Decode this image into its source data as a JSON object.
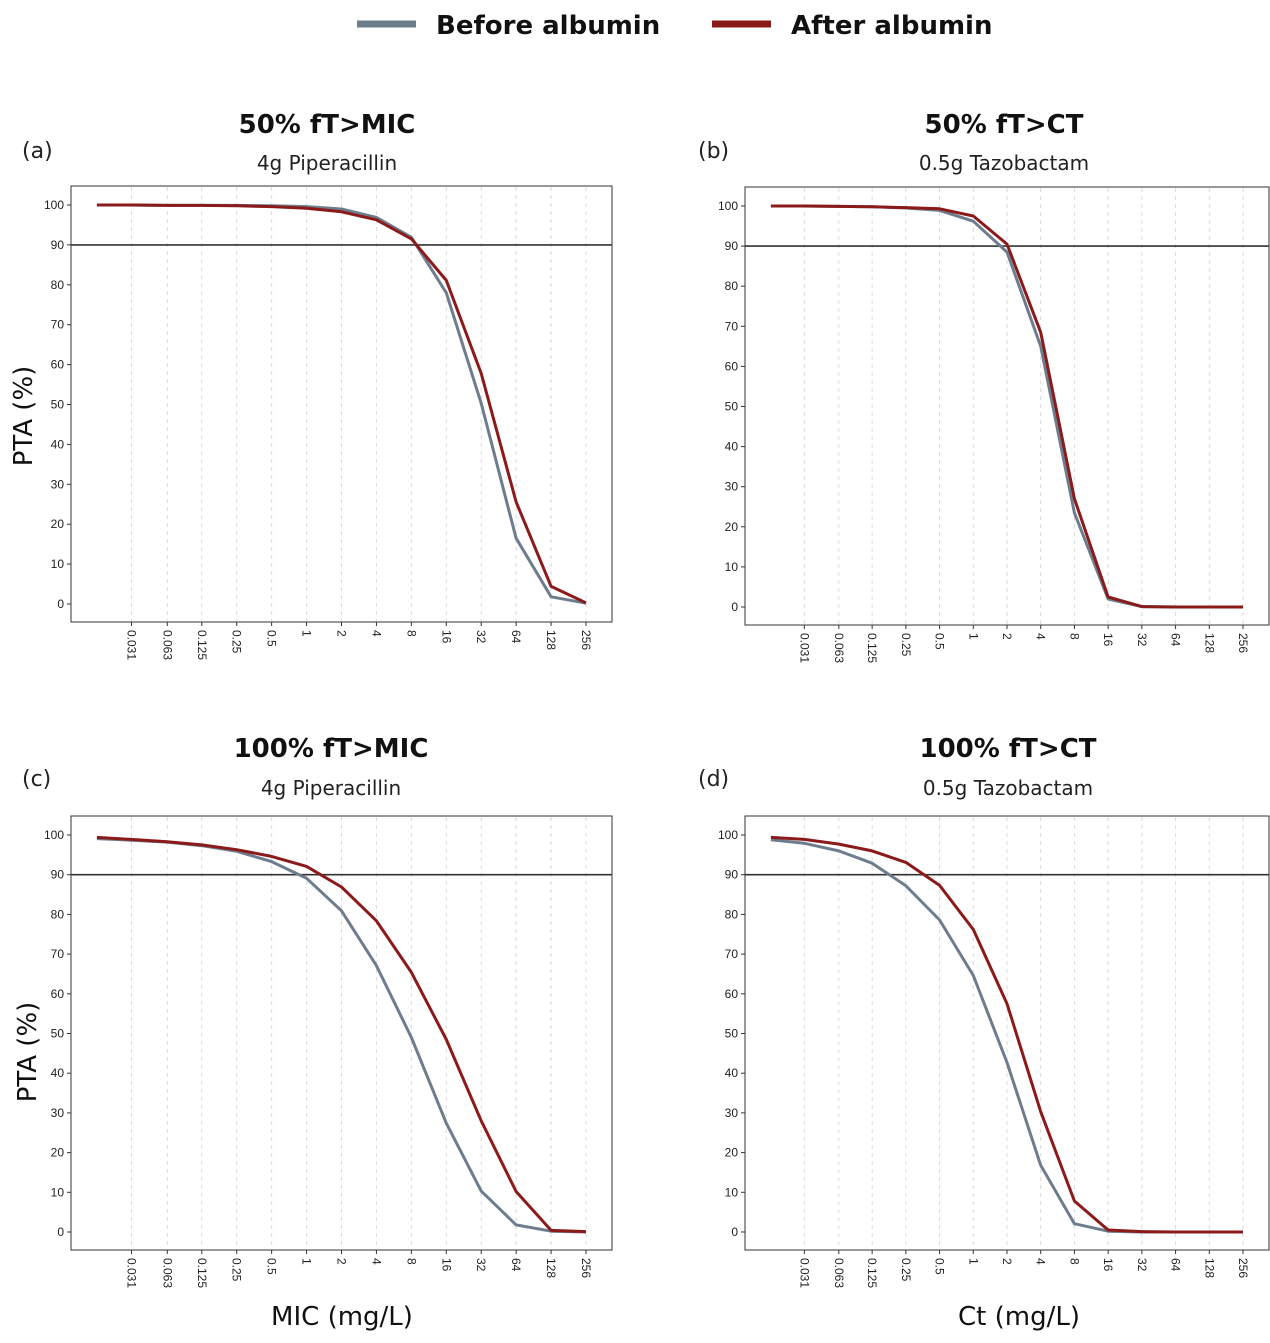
{
  "legend": [
    {
      "label": "Before albumin",
      "color": "#6e7d8e"
    },
    {
      "label": "After albumin",
      "color": "#8b1a1a"
    }
  ],
  "chart_data": [
    {
      "type": "line",
      "letter": "(a)",
      "title": "50% fT>MIC",
      "subtitle": "4g Piperacillin",
      "ylabel": "PTA (%)",
      "xlabel": "",
      "x_ticks": [
        "0.031",
        "0.063",
        "0.125",
        "0.25",
        "0.5",
        "1",
        "2",
        "4",
        "8",
        "16",
        "32",
        "64",
        "128",
        "256"
      ],
      "x_scale": "log2",
      "y_ticks": [
        "0",
        "10",
        "20",
        "30",
        "40",
        "50",
        "60",
        "70",
        "80",
        "90",
        "100"
      ],
      "ylim": [
        0,
        100
      ],
      "reference_line": 90,
      "series": [
        {
          "name": "Before albumin",
          "color": "#6e7d8e",
          "x": [
            0.0156,
            0.031,
            0.063,
            0.125,
            0.25,
            0.5,
            1,
            2,
            4,
            8,
            16,
            32,
            64,
            128,
            256
          ],
          "y": [
            100,
            100,
            99.9,
            99.9,
            99.9,
            99.8,
            99.6,
            99.0,
            96.9,
            91.9,
            78.0,
            50.3,
            16.5,
            1.8,
            0.2
          ]
        },
        {
          "name": "After albumin",
          "color": "#8b1a1a",
          "x": [
            0.0156,
            0.031,
            0.063,
            0.125,
            0.25,
            0.5,
            1,
            2,
            4,
            8,
            16,
            32,
            64,
            128,
            256
          ],
          "y": [
            100,
            100,
            99.9,
            99.9,
            99.8,
            99.6,
            99.2,
            98.3,
            96.3,
            91.5,
            81.1,
            57.8,
            25.6,
            4.4,
            0.3
          ]
        }
      ]
    },
    {
      "type": "line",
      "letter": "(b)",
      "title": "50% fT>CT",
      "subtitle": "0.5g  Tazobactam",
      "ylabel": "",
      "xlabel": "",
      "x_ticks": [
        "0.031",
        "0.063",
        "0.125",
        "0.25",
        "0.5",
        "1",
        "2",
        "4",
        "8",
        "16",
        "32",
        "64",
        "128",
        "256"
      ],
      "x_scale": "log2",
      "y_ticks": [
        "0",
        "10",
        "20",
        "30",
        "40",
        "50",
        "60",
        "70",
        "80",
        "90",
        "100"
      ],
      "ylim": [
        0,
        100
      ],
      "reference_line": 90,
      "series": [
        {
          "name": "Before albumin",
          "color": "#6e7d8e",
          "x": [
            0.0156,
            0.031,
            0.063,
            0.125,
            0.25,
            0.5,
            1,
            2,
            4,
            8,
            16,
            32,
            64,
            128,
            256
          ],
          "y": [
            100,
            100,
            99.9,
            99.8,
            99.5,
            98.9,
            96.2,
            88.5,
            65.0,
            23.5,
            2.0,
            0.1,
            0,
            0,
            0
          ]
        },
        {
          "name": "After albumin",
          "color": "#8b1a1a",
          "x": [
            0.0156,
            0.031,
            0.063,
            0.125,
            0.25,
            0.5,
            1,
            2,
            4,
            8,
            16,
            32,
            64,
            128,
            256
          ],
          "y": [
            100,
            100,
            99.9,
            99.8,
            99.6,
            99.3,
            97.5,
            90.5,
            68.5,
            27.0,
            2.5,
            0.1,
            0,
            0,
            0
          ]
        }
      ]
    },
    {
      "type": "line",
      "letter": "(c)",
      "title": "100% fT>MIC",
      "subtitle": "4g Piperacillin",
      "ylabel": "PTA (%)",
      "xlabel": "MIC (mg/L)",
      "x_ticks": [
        "0.031",
        "0.063",
        "0.125",
        "0.25",
        "0.5",
        "1",
        "2",
        "4",
        "8",
        "16",
        "32",
        "64",
        "128",
        "256"
      ],
      "x_scale": "log2",
      "y_ticks": [
        "0",
        "10",
        "20",
        "30",
        "40",
        "50",
        "60",
        "70",
        "80",
        "90",
        "100"
      ],
      "ylim": [
        0,
        100
      ],
      "reference_line": 90,
      "series": [
        {
          "name": "Before albumin",
          "color": "#6e7d8e",
          "x": [
            0.0156,
            0.031,
            0.063,
            0.125,
            0.25,
            0.5,
            1,
            2,
            4,
            8,
            16,
            32,
            64,
            128,
            256
          ],
          "y": [
            99.1,
            98.7,
            98.2,
            97.3,
            95.9,
            93.3,
            89.1,
            80.9,
            67.1,
            49.0,
            27.4,
            10.3,
            1.8,
            0.2,
            0.0
          ]
        },
        {
          "name": "After albumin",
          "color": "#8b1a1a",
          "x": [
            0.0156,
            0.031,
            0.063,
            0.125,
            0.25,
            0.5,
            1,
            2,
            4,
            8,
            16,
            32,
            64,
            128,
            256
          ],
          "y": [
            99.4,
            98.9,
            98.3,
            97.5,
            96.3,
            94.6,
            92.1,
            86.9,
            78.4,
            65.4,
            48.5,
            28.0,
            10.2,
            0.4,
            0.1
          ]
        }
      ]
    },
    {
      "type": "line",
      "letter": "(d)",
      "title": "100% fT>CT",
      "subtitle": "0.5g  Tazobactam",
      "ylabel": "",
      "xlabel": "Ct (mg/L)",
      "x_ticks": [
        "0.031",
        "0.063",
        "0.125",
        "0.25",
        "0.5",
        "1",
        "2",
        "4",
        "8",
        "16",
        "32",
        "64",
        "128",
        "256"
      ],
      "x_scale": "log2",
      "y_ticks": [
        "0",
        "10",
        "20",
        "30",
        "40",
        "50",
        "60",
        "70",
        "80",
        "90",
        "100"
      ],
      "ylim": [
        0,
        100
      ],
      "reference_line": 90,
      "series": [
        {
          "name": "Before albumin",
          "color": "#6e7d8e",
          "x": [
            0.0156,
            0.031,
            0.063,
            0.125,
            0.25,
            0.5,
            1,
            2,
            4,
            8,
            16,
            32,
            64,
            128,
            256
          ],
          "y": [
            98.8,
            97.9,
            96.0,
            92.9,
            87.2,
            78.6,
            64.6,
            42.7,
            16.8,
            2.1,
            0.2,
            0,
            0,
            0,
            0
          ]
        },
        {
          "name": "After albumin",
          "color": "#8b1a1a",
          "x": [
            0.0156,
            0.031,
            0.063,
            0.125,
            0.25,
            0.5,
            1,
            2,
            4,
            8,
            16,
            32,
            64,
            128,
            256
          ],
          "y": [
            99.4,
            98.9,
            97.7,
            96.0,
            93.1,
            87.3,
            76.2,
            57.5,
            30.3,
            7.8,
            0.5,
            0.1,
            0,
            0,
            0
          ]
        }
      ]
    }
  ]
}
